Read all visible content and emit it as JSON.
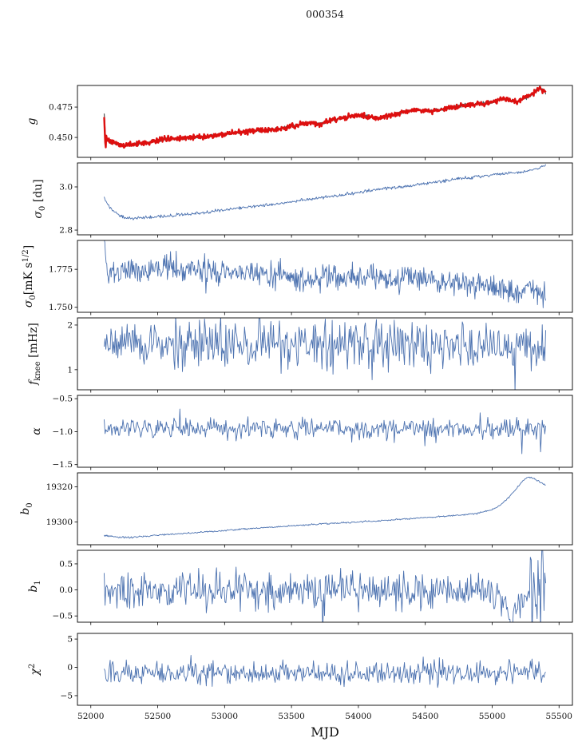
{
  "chart_data": {
    "type": "line",
    "title": "000354",
    "xlabel": "MJD",
    "xlim": [
      51900,
      55600
    ],
    "x_ticks": [
      52000,
      52500,
      53000,
      53500,
      54000,
      54500,
      55000,
      55500
    ],
    "line_color": "#4c72b0",
    "panels": [
      {
        "name": "g",
        "ylabel_parts": [
          {
            "t": "g",
            "it": true
          }
        ],
        "ylabel_x": 44,
        "ylim": [
          0.4336,
          0.4928
        ],
        "yticks": [
          0.45,
          0.475
        ],
        "ytick_labels": [
          "0.450",
          "0.475"
        ],
        "trends": [
          [
            [
              52100,
              0.47
            ],
            [
              52108,
              0.452
            ],
            [
              52120,
              0.449
            ],
            [
              52140,
              0.4468
            ],
            [
              52180,
              0.4448
            ],
            [
              52250,
              0.4435
            ],
            [
              52300,
              0.4437
            ],
            [
              52400,
              0.4452
            ],
            [
              52500,
              0.4478
            ],
            [
              52550,
              0.4488
            ],
            [
              52650,
              0.449
            ],
            [
              52750,
              0.45
            ],
            [
              52850,
              0.4508
            ],
            [
              52950,
              0.452
            ],
            [
              53050,
              0.4535
            ],
            [
              53150,
              0.4548
            ],
            [
              53250,
              0.456
            ],
            [
              53350,
              0.4558
            ],
            [
              53450,
              0.458
            ],
            [
              53550,
              0.4605
            ],
            [
              53650,
              0.4618
            ],
            [
              53720,
              0.461
            ],
            [
              53800,
              0.4645
            ],
            [
              53900,
              0.4665
            ],
            [
              53980,
              0.468
            ],
            [
              54060,
              0.4675
            ],
            [
              54150,
              0.466
            ],
            [
              54250,
              0.4685
            ],
            [
              54350,
              0.4715
            ],
            [
              54450,
              0.473
            ],
            [
              54550,
              0.472
            ],
            [
              54650,
              0.4735
            ],
            [
              54750,
              0.476
            ],
            [
              54850,
              0.4775
            ],
            [
              54950,
              0.478
            ],
            [
              55030,
              0.48
            ],
            [
              55080,
              0.482
            ],
            [
              55130,
              0.4805
            ],
            [
              55180,
              0.479
            ],
            [
              55230,
              0.482
            ],
            [
              55280,
              0.484
            ],
            [
              55330,
              0.489
            ],
            [
              55360,
              0.491
            ],
            [
              55400,
              0.487
            ]
          ]
        ],
        "series": [
          {
            "name": "gain-model",
            "trend": 0,
            "color": "#555555",
            "width": 1.2,
            "n": 850,
            "seed": 101,
            "noise": 0.0007,
            "boost_until": 52112,
            "boost": 4
          },
          {
            "name": "gain-data",
            "trend": 0,
            "color": "#dd0f0f",
            "width": 2.4,
            "n": 850,
            "seed": 202,
            "noise": 0.0011,
            "boost_until": 52118,
            "boost": 8
          }
        ]
      },
      {
        "name": "sigma0-du",
        "ylabel_parts": [
          {
            "t": "σ",
            "it": true
          },
          {
            "t": "0",
            "sub": true
          },
          {
            "t": " [du]"
          }
        ],
        "ylabel_x": 52,
        "ylim": [
          2.778,
          3.111
        ],
        "yticks": [
          2.8,
          3.0
        ],
        "ytick_labels": [
          "2.8",
          "3.0"
        ],
        "trends": [
          [
            [
              52100,
              2.95
            ],
            [
              52130,
              2.915
            ],
            [
              52170,
              2.885
            ],
            [
              52230,
              2.862
            ],
            [
              52300,
              2.853
            ],
            [
              52380,
              2.855
            ],
            [
              52450,
              2.86
            ],
            [
              52550,
              2.865
            ],
            [
              52650,
              2.87
            ],
            [
              52750,
              2.873
            ],
            [
              52850,
              2.88
            ],
            [
              52950,
              2.89
            ],
            [
              53050,
              2.898
            ],
            [
              53150,
              2.905
            ],
            [
              53250,
              2.912
            ],
            [
              53350,
              2.918
            ],
            [
              53450,
              2.925
            ],
            [
              53550,
              2.935
            ],
            [
              53650,
              2.945
            ],
            [
              53750,
              2.952
            ],
            [
              53850,
              2.96
            ],
            [
              53950,
              2.97
            ],
            [
              54050,
              2.98
            ],
            [
              54150,
              2.988
            ],
            [
              54250,
              2.997
            ],
            [
              54350,
              3.003
            ],
            [
              54450,
              3.012
            ],
            [
              54550,
              3.02
            ],
            [
              54650,
              3.028
            ],
            [
              54750,
              3.038
            ],
            [
              54850,
              3.045
            ],
            [
              54950,
              3.052
            ],
            [
              55050,
              3.06
            ],
            [
              55150,
              3.065
            ],
            [
              55250,
              3.072
            ],
            [
              55350,
              3.085
            ],
            [
              55400,
              3.105
            ]
          ]
        ],
        "series": [
          {
            "name": "sigma0-du",
            "trend": 0,
            "color": "#4c72b0",
            "width": 0.9,
            "n": 700,
            "seed": 303,
            "noise": 0.0035
          }
        ]
      },
      {
        "name": "sigma0-mks",
        "ylabel_parts": [
          {
            "t": "σ",
            "it": true
          },
          {
            "t": "0",
            "sub": true
          },
          {
            "t": "[mK s"
          },
          {
            "t": "1/2",
            "sup": true
          },
          {
            "t": "]"
          }
        ],
        "ylabel_x": 40,
        "ylim": [
          1.7467,
          1.794
        ],
        "yticks": [
          1.75,
          1.775
        ],
        "ytick_labels": [
          "1.750",
          "1.775"
        ],
        "trends": [
          [
            [
              52100,
              1.7955
            ],
            [
              52115,
              1.778
            ],
            [
              52130,
              1.768
            ],
            [
              52160,
              1.773
            ],
            [
              52200,
              1.7755
            ],
            [
              52300,
              1.772
            ],
            [
              52400,
              1.7735
            ],
            [
              52500,
              1.775
            ],
            [
              52600,
              1.776
            ],
            [
              52700,
              1.7745
            ],
            [
              52800,
              1.776
            ],
            [
              52900,
              1.773
            ],
            [
              53000,
              1.772
            ],
            [
              53100,
              1.774
            ],
            [
              53200,
              1.772
            ],
            [
              53300,
              1.77
            ],
            [
              53400,
              1.771
            ],
            [
              53500,
              1.769
            ],
            [
              53600,
              1.768
            ],
            [
              53700,
              1.77
            ],
            [
              53800,
              1.772
            ],
            [
              53900,
              1.77
            ],
            [
              54000,
              1.769
            ],
            [
              54100,
              1.77
            ],
            [
              54200,
              1.7685
            ],
            [
              54300,
              1.768
            ],
            [
              54400,
              1.769
            ],
            [
              54500,
              1.767
            ],
            [
              54600,
              1.766
            ],
            [
              54700,
              1.765
            ],
            [
              54800,
              1.7655
            ],
            [
              54900,
              1.764
            ],
            [
              55000,
              1.763
            ],
            [
              55100,
              1.762
            ],
            [
              55200,
              1.7615
            ],
            [
              55300,
              1.764
            ],
            [
              55340,
              1.757
            ],
            [
              55380,
              1.756
            ],
            [
              55400,
              1.759
            ]
          ]
        ],
        "series": [
          {
            "name": "sigma0-mks",
            "trend": 0,
            "color": "#4c72b0",
            "width": 0.9,
            "n": 700,
            "seed": 404,
            "noise": 0.004,
            "spike_p": 0.03,
            "spike_mult": 2
          }
        ]
      },
      {
        "name": "fknee",
        "ylabel_parts": [
          {
            "t": "f",
            "it": true
          },
          {
            "t": "knee",
            "sub": true
          },
          {
            "t": " [mHz]"
          }
        ],
        "ylabel_x": 46,
        "ylim": [
          0.55,
          2.16
        ],
        "yticks": [
          1,
          2
        ],
        "ytick_labels": [
          "1",
          "2"
        ],
        "trends": [
          [
            [
              52100,
              1.55
            ],
            [
              55400,
              1.55
            ]
          ]
        ],
        "series": [
          {
            "name": "fknee",
            "trend": 0,
            "color": "#4c72b0",
            "width": 0.9,
            "n": 520,
            "seed": 505,
            "noise": 0.27,
            "spike_p": 0.03,
            "spike_mult": 1.6
          }
        ]
      },
      {
        "name": "alpha",
        "ylabel_parts": [
          {
            "t": "α",
            "it": true
          }
        ],
        "ylabel_x": 50,
        "ylim": [
          -1.54,
          -0.45
        ],
        "yticks": [
          -1.5,
          -1.0,
          -0.5
        ],
        "ytick_labels": [
          "−1.5",
          "−1.0",
          "−0.5"
        ],
        "trends": [
          [
            [
              52100,
              -0.95
            ],
            [
              55400,
              -0.95
            ]
          ]
        ],
        "series": [
          {
            "name": "alpha",
            "trend": 0,
            "color": "#4c72b0",
            "width": 0.9,
            "n": 520,
            "seed": 606,
            "noise": 0.07,
            "spike_p": 0.04,
            "spike_mult": 2.5
          }
        ]
      },
      {
        "name": "b0",
        "ylabel_parts": [
          {
            "t": "b",
            "it": true
          },
          {
            "t": "0",
            "sub": true
          }
        ],
        "ylabel_x": 36,
        "ylim": [
          19287,
          19328
        ],
        "yticks": [
          19300,
          19320
        ],
        "ytick_labels": [
          "19300",
          "19320"
        ],
        "trends": [
          [
            [
              52100,
              19292.3
            ],
            [
              52200,
              19291.3
            ],
            [
              52300,
              19291.2
            ],
            [
              52400,
              19291.8
            ],
            [
              52500,
              19292.5
            ],
            [
              52650,
              19293.2
            ],
            [
              52800,
              19294.0
            ],
            [
              53000,
              19295.2
            ],
            [
              53200,
              19296.3
            ],
            [
              53400,
              19297.3
            ],
            [
              53600,
              19298.3
            ],
            [
              53800,
              19299.2
            ],
            [
              54000,
              19300.0
            ],
            [
              54200,
              19300.9
            ],
            [
              54400,
              19302.0
            ],
            [
              54600,
              19303.0
            ],
            [
              54750,
              19303.8
            ],
            [
              54900,
              19305.0
            ],
            [
              55000,
              19307.0
            ],
            [
              55060,
              19309.5
            ],
            [
              55120,
              19313.5
            ],
            [
              55180,
              19319.0
            ],
            [
              55230,
              19323.5
            ],
            [
              55270,
              19325.5
            ],
            [
              55310,
              19325.0
            ],
            [
              55350,
              19323.0
            ],
            [
              55400,
              19321.0
            ]
          ]
        ],
        "series": [
          {
            "name": "b0",
            "trend": 0,
            "color": "#4c72b0",
            "width": 0.9,
            "n": 650,
            "seed": 707,
            "noise": 0.22
          }
        ]
      },
      {
        "name": "b1",
        "ylabel_parts": [
          {
            "t": "b",
            "it": true
          },
          {
            "t": "1",
            "sub": true
          }
        ],
        "ylabel_x": 46,
        "ylim": [
          -0.62,
          0.76
        ],
        "yticks": [
          -0.5,
          0.0,
          0.5
        ],
        "ytick_labels": [
          "−0.5",
          "0.0",
          "0.5"
        ],
        "trends": [
          [
            [
              52100,
              0.0
            ],
            [
              54850,
              0.0
            ],
            [
              54950,
              -0.05
            ],
            [
              55050,
              -0.15
            ],
            [
              55150,
              -0.4
            ],
            [
              55220,
              -0.25
            ],
            [
              55280,
              0.05
            ],
            [
              55340,
              0.1
            ],
            [
              55400,
              0.1
            ]
          ]
        ],
        "series": [
          {
            "name": "b1",
            "trend": 0,
            "color": "#4c72b0",
            "width": 0.9,
            "n": 520,
            "seed": 808,
            "noise": 0.17,
            "spike_p": 0.04,
            "spike_mult": 2,
            "boost_from": 55280,
            "boost2": 2.2
          }
        ]
      },
      {
        "name": "chi2",
        "ylabel_parts": [
          {
            "t": "χ",
            "it": true
          },
          {
            "t": "2",
            "sup": true
          }
        ],
        "ylabel_x": 48,
        "ylim": [
          -6.7,
          6.0
        ],
        "yticks": [
          -5,
          0,
          5
        ],
        "ytick_labels": [
          "−5",
          "0",
          "5"
        ],
        "trends": [
          [
            [
              52100,
              -1.1
            ],
            [
              55400,
              -0.9
            ]
          ]
        ],
        "series": [
          {
            "name": "chi2",
            "trend": 0,
            "color": "#4c72b0",
            "width": 0.9,
            "n": 520,
            "seed": 909,
            "noise": 1.0,
            "spike_p": 0.05,
            "spike_mult": 1.8
          }
        ]
      }
    ]
  }
}
